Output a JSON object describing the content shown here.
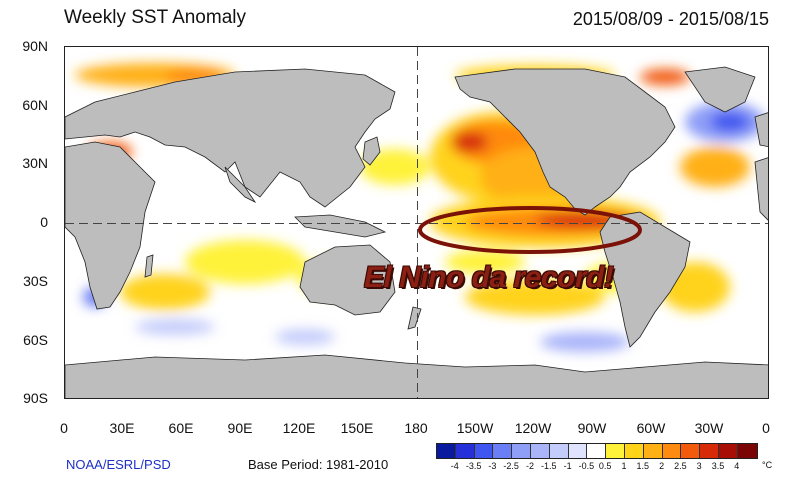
{
  "header": {
    "title": "Weekly SST Anomaly",
    "period": "2015/08/09 - 2015/08/15"
  },
  "axes": {
    "lat_labels": [
      "90N",
      "60N",
      "30N",
      "0",
      "30S",
      "60S",
      "90S"
    ],
    "lon_labels": [
      "0",
      "30E",
      "60E",
      "90E",
      "120E",
      "150E",
      "180",
      "150W",
      "120W",
      "90W",
      "60W",
      "30W",
      "0"
    ]
  },
  "footer": {
    "credit": "NOAA/ESRL/PSD",
    "base_period": "Base Period: 1981-2010"
  },
  "colorbar": {
    "ticks": [
      "-4",
      "-3.5",
      "-3",
      "-2.5",
      "-2",
      "-1.5",
      "-1",
      "-0.5",
      "0.5",
      "1",
      "1.5",
      "2",
      "2.5",
      "3",
      "3.5",
      "4"
    ],
    "colors": [
      "#0a1a9e",
      "#2530d8",
      "#3f56f0",
      "#6a7ef5",
      "#8f9ff7",
      "#aab5f9",
      "#c4ccfb",
      "#dfe3fd",
      "#ffffff",
      "#fff23a",
      "#ffd31a",
      "#ffb014",
      "#ff8a10",
      "#f25a0c",
      "#d62a08",
      "#a80d06",
      "#7a0504"
    ],
    "unit": "°C"
  },
  "annotation": {
    "text": "El Nino da record!",
    "ring_color": "#7a1208"
  }
}
